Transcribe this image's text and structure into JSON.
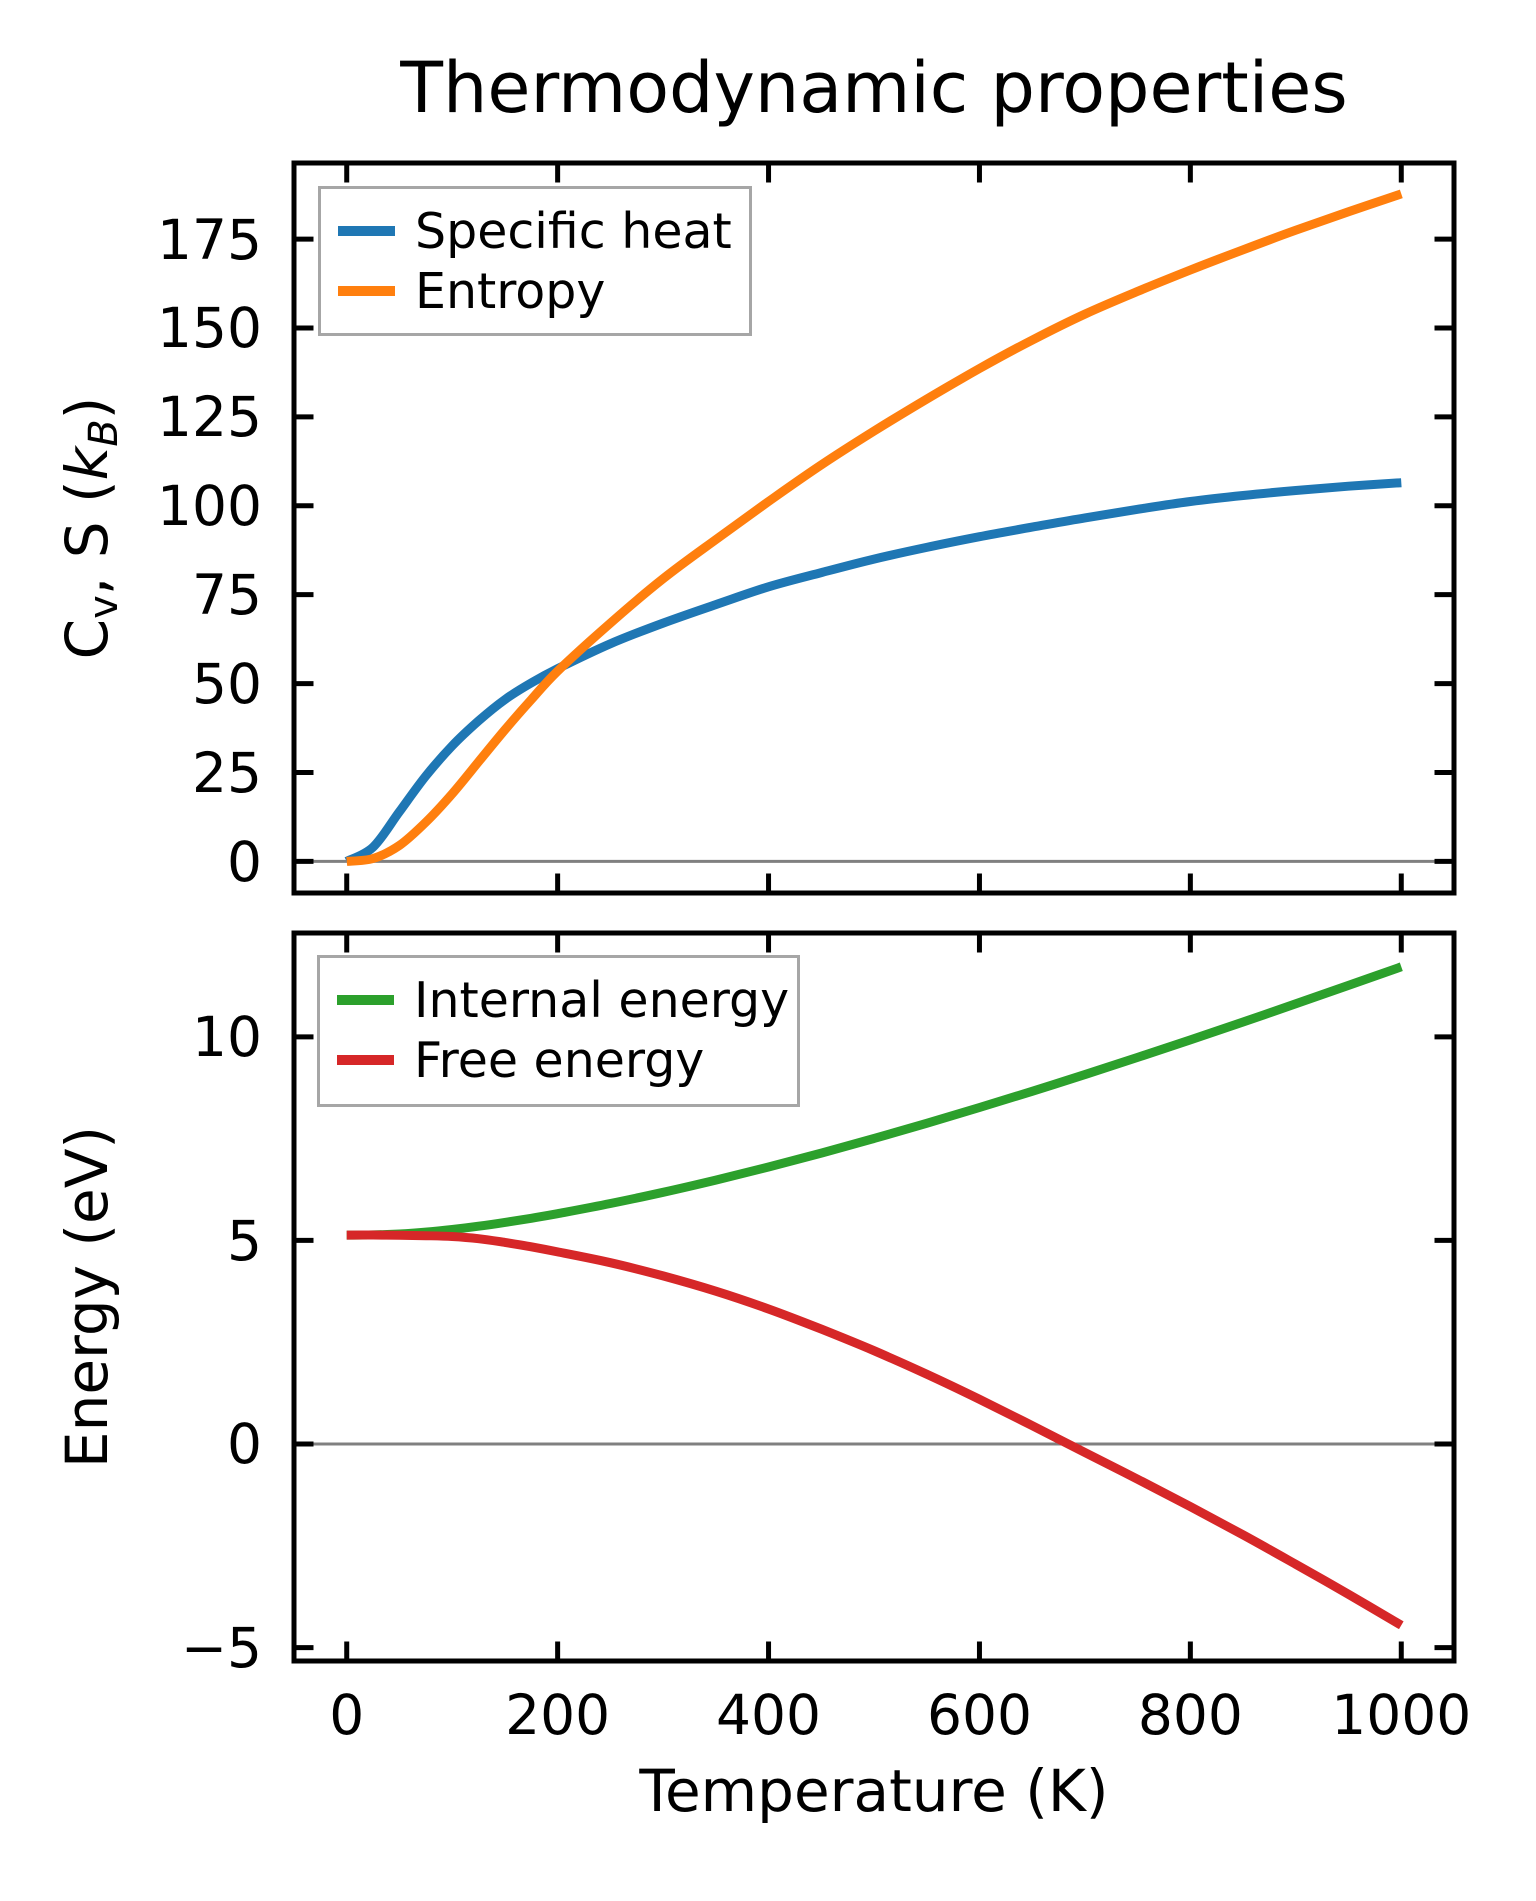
{
  "figure": {
    "background": "#ffffff",
    "spine_color": "#000000",
    "zero_line_color": "#808080",
    "legend_border_color": "#a6a6a6"
  },
  "chart_data": [
    {
      "type": "line",
      "title": "Thermodynamic properties",
      "ylabel_parts": {
        "p1": "C",
        "sub1": "v",
        "p2": ", S (",
        "k": "k",
        "sub2": "B",
        "p3": ")"
      },
      "xlim": [
        -50,
        1050
      ],
      "ylim": [
        -8.9,
        196.4
      ],
      "xticks": [
        0,
        200,
        400,
        600,
        800,
        1000
      ],
      "xtick_labels": [],
      "yticks": [
        0,
        25,
        50,
        75,
        100,
        125,
        150,
        175
      ],
      "ytick_labels": [
        "0",
        "25",
        "50",
        "75",
        "100",
        "125",
        "150",
        "175"
      ],
      "zero_line": true,
      "grid": false,
      "legend_position": "upper left",
      "x": [
        0,
        25,
        50,
        75,
        100,
        125,
        150,
        175,
        200,
        250,
        300,
        350,
        400,
        450,
        500,
        550,
        600,
        650,
        700,
        750,
        800,
        850,
        900,
        950,
        1000
      ],
      "series": [
        {
          "id": "specific-heat",
          "name": "Specific heat",
          "color": "#1f77b4",
          "values": [
            0,
            4,
            14,
            24,
            32.5,
            39.5,
            45.5,
            50.2,
            54.2,
            61.2,
            67,
            72.2,
            77.2,
            81.2,
            85,
            88.3,
            91.3,
            94,
            96.6,
            99,
            101.2,
            102.9,
            104.3,
            105.5,
            106.5
          ]
        },
        {
          "id": "entropy",
          "name": "Entropy",
          "color": "#ff7f0e",
          "values": [
            0,
            0.8,
            4.5,
            11,
            19,
            28,
            37,
            45.5,
            53.5,
            67,
            79.5,
            90.5,
            101.2,
            111.5,
            121,
            130,
            138.6,
            146.6,
            153.9,
            160.3,
            166.3,
            172,
            177.5,
            182.7,
            187.7
          ]
        }
      ]
    },
    {
      "type": "line",
      "xlabel": "Temperature (K)",
      "ylabel": "Energy (eV)",
      "xlim": [
        -50,
        1050
      ],
      "ylim": [
        -5.33,
        12.55
      ],
      "xticks": [
        0,
        200,
        400,
        600,
        800,
        1000
      ],
      "xtick_labels": [
        "0",
        "200",
        "400",
        "600",
        "800",
        "1000"
      ],
      "yticks": [
        -5,
        0,
        5,
        10
      ],
      "ytick_labels": [
        "−5",
        "0",
        "5",
        "10"
      ],
      "zero_line": true,
      "grid": false,
      "legend_position": "upper left",
      "x": [
        0,
        25,
        50,
        75,
        100,
        125,
        150,
        175,
        200,
        250,
        300,
        350,
        400,
        450,
        500,
        550,
        600,
        650,
        700,
        750,
        800,
        850,
        900,
        950,
        1000
      ],
      "series": [
        {
          "id": "internal-energy",
          "name": "Internal energy",
          "color": "#2ca02c",
          "values": [
            5.13,
            5.135,
            5.158,
            5.203,
            5.268,
            5.348,
            5.441,
            5.544,
            5.657,
            5.906,
            6.182,
            6.482,
            6.803,
            7.145,
            7.503,
            7.876,
            8.263,
            8.662,
            9.073,
            9.494,
            9.925,
            10.365,
            10.811,
            11.263,
            11.72
          ]
        },
        {
          "id": "free-energy",
          "name": "Free energy",
          "color": "#d62728",
          "values": [
            5.13,
            5.132,
            5.126,
            5.116,
            5.096,
            5.041,
            4.95,
            4.843,
            4.718,
            4.452,
            4.127,
            3.753,
            3.315,
            2.821,
            2.29,
            1.715,
            1.097,
            0.451,
            -0.21,
            -0.866,
            -1.539,
            -2.233,
            -2.955,
            -3.693,
            -4.454
          ]
        }
      ]
    }
  ]
}
